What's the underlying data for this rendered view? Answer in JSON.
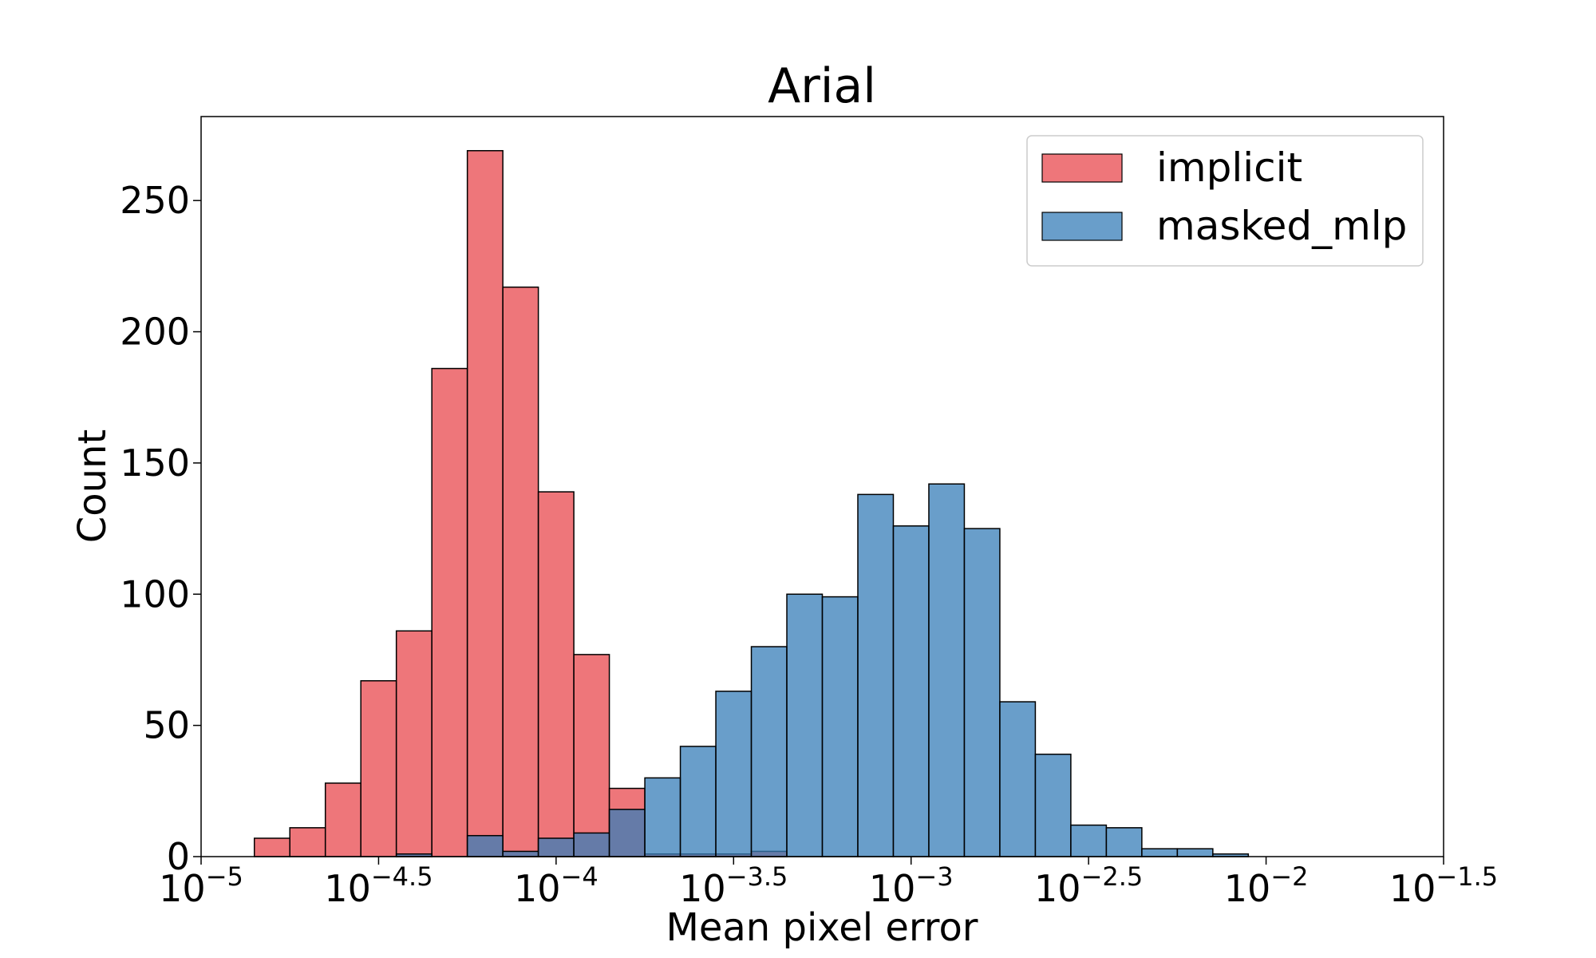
{
  "chart_data": {
    "type": "bar",
    "title": "Arial",
    "xlabel": "Mean pixel error",
    "ylabel": "Count",
    "x_scale": "log10",
    "xlim_exponent": [
      -5,
      -1.5
    ],
    "ylim": [
      0,
      282
    ],
    "x_ticks": [
      {
        "base": "10",
        "exp": "−5",
        "value": -5
      },
      {
        "base": "10",
        "exp": "−4.5",
        "value": -4.5
      },
      {
        "base": "10",
        "exp": "−4",
        "value": -4
      },
      {
        "base": "10",
        "exp": "−3.5",
        "value": -3.5
      },
      {
        "base": "10",
        "exp": "−3",
        "value": -3
      },
      {
        "base": "10",
        "exp": "−2.5",
        "value": -2.5
      },
      {
        "base": "10",
        "exp": "−2",
        "value": -2
      },
      {
        "base": "10",
        "exp": "−1.5",
        "value": -1.5
      }
    ],
    "y_ticks": [
      "0",
      "50",
      "100",
      "150",
      "200",
      "250"
    ],
    "bin_edges_exponent": [
      -4.85,
      -4.75,
      -4.65,
      -4.55,
      -4.45,
      -4.35,
      -4.25,
      -4.15,
      -4.05,
      -3.95,
      -3.85,
      -3.75,
      -3.65,
      -3.55,
      -3.45,
      -3.35,
      -3.25,
      -3.15,
      -3.05,
      -2.95,
      -2.85,
      -2.75,
      -2.65,
      -2.55,
      -2.45,
      -2.35,
      -2.25,
      -2.15,
      -2.05
    ],
    "legend_position": "top-right",
    "grid": false,
    "series": [
      {
        "name": "implicit",
        "color": "#e8484d",
        "counts": [
          7,
          11,
          28,
          67,
          86,
          186,
          269,
          217,
          139,
          77,
          26,
          1,
          1,
          1,
          2,
          0,
          0,
          0,
          0,
          0,
          0,
          0,
          0,
          0,
          0,
          0,
          0,
          0
        ]
      },
      {
        "name": "masked_mlp",
        "color": "#377eb8",
        "counts": [
          0,
          0,
          0,
          0,
          1,
          0,
          8,
          2,
          7,
          9,
          18,
          30,
          42,
          63,
          80,
          100,
          99,
          138,
          126,
          142,
          125,
          59,
          39,
          12,
          11,
          3,
          3,
          1
        ]
      }
    ]
  }
}
